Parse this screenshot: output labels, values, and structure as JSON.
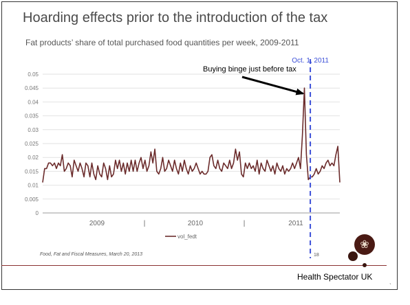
{
  "slide": {
    "title": "Hoarding effects prior to the introduction of the tax",
    "subtitle": "Fat products’ share of total purchased food quantities per week, 2009-2011",
    "footer": "Food, Fat and Fiscal Measures, March 20, 2013",
    "page_number": "18",
    "brand": "Health Spectator UK",
    "logo_icon": "deer-crest-icon",
    "corner_glyph": "ˎ"
  },
  "colors": {
    "series": "#6b2b2b",
    "marker_line": "#3b4fd8",
    "arrow": "#000000",
    "rule": "#8a3030"
  },
  "chart_data": {
    "type": "line",
    "title": "",
    "xlabel": "",
    "ylabel": "",
    "ylim": [
      0,
      0.05
    ],
    "y_ticks": [
      "0",
      "0.005",
      "0.01",
      "0.015",
      "0.02",
      "0.025",
      "0.03",
      "0.035",
      "0.04",
      "0.045",
      "0.05"
    ],
    "x_tick_labels": [
      "2009",
      "|",
      "2010",
      "|",
      "2011"
    ],
    "x_range_weeks": [
      1,
      152
    ],
    "grid": true,
    "legend": {
      "position": "bottom-center",
      "entries": [
        "vol_fedt"
      ]
    },
    "series": [
      {
        "name": "vol_fedt",
        "values": [
          0.011,
          0.016,
          0.016,
          0.018,
          0.018,
          0.017,
          0.018,
          0.016,
          0.018,
          0.017,
          0.021,
          0.015,
          0.016,
          0.018,
          0.017,
          0.013,
          0.019,
          0.017,
          0.015,
          0.018,
          0.016,
          0.013,
          0.018,
          0.017,
          0.013,
          0.018,
          0.014,
          0.012,
          0.017,
          0.014,
          0.013,
          0.018,
          0.016,
          0.012,
          0.017,
          0.013,
          0.014,
          0.019,
          0.016,
          0.019,
          0.015,
          0.018,
          0.014,
          0.018,
          0.015,
          0.019,
          0.015,
          0.019,
          0.015,
          0.018,
          0.02,
          0.016,
          0.019,
          0.015,
          0.017,
          0.022,
          0.018,
          0.023,
          0.015,
          0.014,
          0.016,
          0.02,
          0.015,
          0.016,
          0.019,
          0.017,
          0.015,
          0.019,
          0.016,
          0.014,
          0.018,
          0.015,
          0.019,
          0.016,
          0.014,
          0.017,
          0.015,
          0.016,
          0.018,
          0.016,
          0.014,
          0.015,
          0.014,
          0.014,
          0.015,
          0.02,
          0.021,
          0.017,
          0.016,
          0.019,
          0.016,
          0.015,
          0.018,
          0.017,
          0.016,
          0.019,
          0.016,
          0.018,
          0.023,
          0.019,
          0.022,
          0.014,
          0.013,
          0.018,
          0.016,
          0.018,
          0.016,
          0.017,
          0.015,
          0.019,
          0.014,
          0.018,
          0.016,
          0.015,
          0.019,
          0.017,
          0.015,
          0.017,
          0.014,
          0.018,
          0.016,
          0.015,
          0.017,
          0.014,
          0.016,
          0.015,
          0.016,
          0.018,
          0.016,
          0.018,
          0.02,
          0.016,
          0.028,
          0.045,
          0.021,
          0.012,
          0.013,
          0.013,
          0.014,
          0.016,
          0.014,
          0.015,
          0.017,
          0.016,
          0.018,
          0.019,
          0.017,
          0.018,
          0.017,
          0.021,
          0.024,
          0.011
        ],
        "color": "#6b2b2b"
      }
    ],
    "annotations": [
      {
        "type": "vertical-line",
        "label": "Oct. 1, 2011",
        "style": "dashed",
        "at_week": 137
      },
      {
        "type": "arrow",
        "label": "Buying binge just before tax",
        "points_to_week": 134
      }
    ]
  }
}
